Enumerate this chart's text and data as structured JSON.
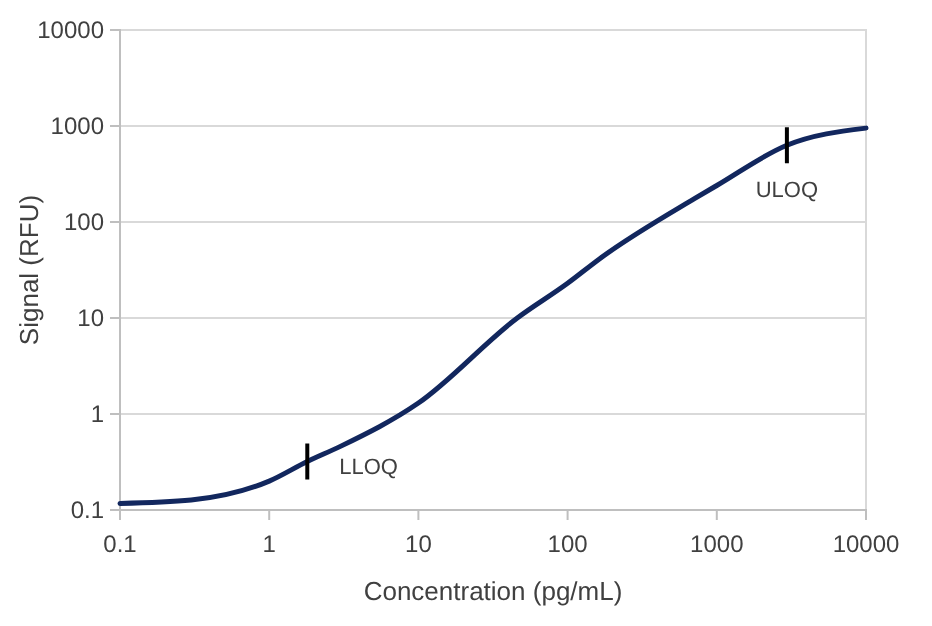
{
  "chart_data": {
    "type": "line",
    "xlabel": "Concentration (pg/mL)",
    "ylabel": "Signal (RFU)",
    "log": "xy",
    "grid": "y",
    "marker": "none",
    "line_style": "solid",
    "xlim": [
      0.1,
      10000
    ],
    "xticks": [
      0.1,
      1,
      10,
      100,
      1000,
      10000
    ],
    "ylim": [
      0.1,
      10000
    ],
    "yticks": [
      0.1,
      1,
      10,
      100,
      1000,
      10000
    ],
    "series": [
      {
        "color": "#12275e",
        "x": [
          0.1,
          0.3,
          1,
          1.8,
          3,
          10,
          46,
          100,
          166,
          708,
          1000,
          2950,
          10000
        ],
        "values": [
          0.117,
          0.127,
          0.2,
          0.32,
          0.46,
          1.3,
          10,
          23,
          42,
          175,
          240,
          630,
          950
        ]
      }
    ],
    "annotations": [
      {
        "text": "LLOQ",
        "x": 1.8,
        "y": 0.32
      },
      {
        "text": "ULOQ",
        "x": 2950,
        "y": 630
      }
    ]
  }
}
